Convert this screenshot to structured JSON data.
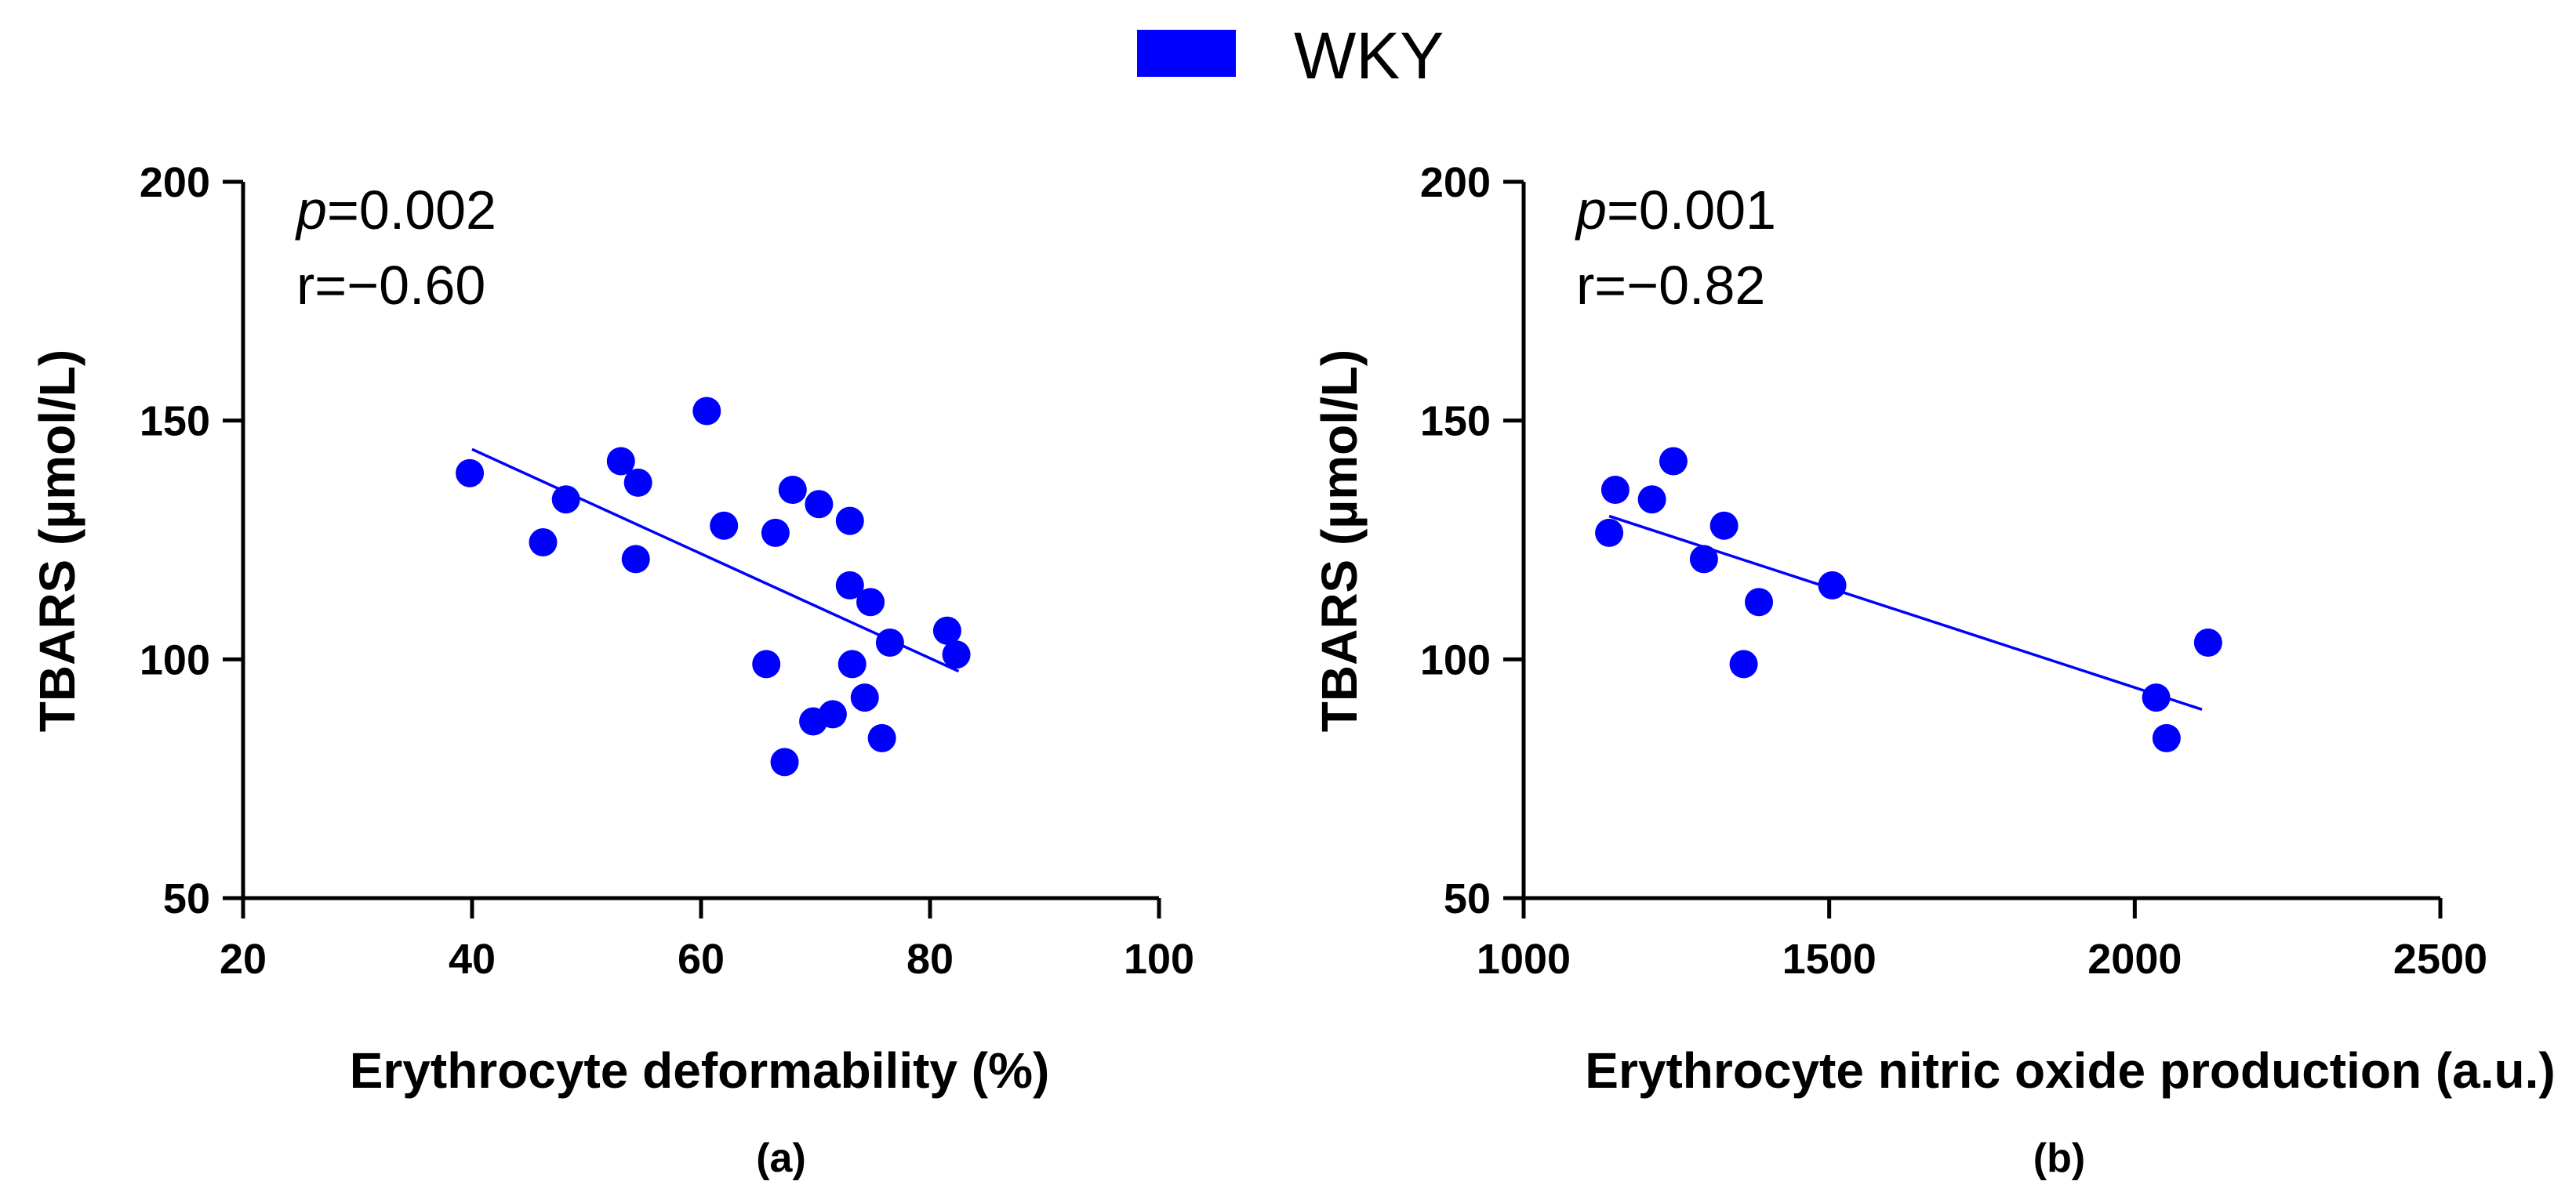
{
  "legend": {
    "label": "WKY",
    "color": "#0000ff"
  },
  "chart_data": [
    {
      "type": "scatter",
      "panel_label": "(a)",
      "xlabel": "Erythrocyte deformability (%)",
      "ylabel": "TBARS (µmol/L)",
      "xlim": [
        20,
        100
      ],
      "ylim": [
        50,
        200
      ],
      "xticks": [
        20,
        40,
        60,
        80,
        100
      ],
      "yticks": [
        50,
        100,
        150,
        200
      ],
      "p_prefix": "p",
      "p_value": "=0.002",
      "r_text": "r=−0.60",
      "series": [
        {
          "name": "WKY",
          "points": [
            [
              39.8,
              139
            ],
            [
              46.2,
              124.5
            ],
            [
              48.2,
              133.5
            ],
            [
              53,
              141.5
            ],
            [
              54.5,
              137
            ],
            [
              54.3,
              121
            ],
            [
              60.5,
              152
            ],
            [
              62,
              128
            ],
            [
              66.5,
              126.5
            ],
            [
              68,
              135.5
            ],
            [
              70.3,
              132.5
            ],
            [
              73,
              129
            ],
            [
              73,
              115.5
            ],
            [
              74.8,
              112
            ],
            [
              76.5,
              103.5
            ],
            [
              81.5,
              106
            ],
            [
              82.3,
              101
            ],
            [
              65.7,
              99
            ],
            [
              73.2,
              99
            ],
            [
              74.3,
              92
            ],
            [
              71.5,
              88.5
            ],
            [
              69.8,
              87
            ],
            [
              75.8,
              83.5
            ],
            [
              67.3,
              78.5
            ]
          ]
        }
      ],
      "fit_line": {
        "x": [
          40,
          82.5
        ],
        "y": [
          144,
          97.5
        ]
      }
    },
    {
      "type": "scatter",
      "panel_label": "(b)",
      "xlabel": "Erythrocyte nitric oxide production (a.u.)",
      "ylabel": "TBARS (µmol/L)",
      "xlim": [
        1000,
        2500
      ],
      "ylim": [
        50,
        200
      ],
      "xticks": [
        1000,
        1500,
        2000,
        2500
      ],
      "yticks": [
        50,
        100,
        150,
        200
      ],
      "p_prefix": "p",
      "p_value": "=0.001",
      "r_text": "r=−0.82",
      "series": [
        {
          "name": "WKY",
          "points": [
            [
              1140,
              126.5
            ],
            [
              1150,
              135.5
            ],
            [
              1210,
              133.5
            ],
            [
              1245,
              141.5
            ],
            [
              1295,
              121
            ],
            [
              1328,
              128
            ],
            [
              1360,
              99
            ],
            [
              1385,
              112
            ],
            [
              1505,
              115.5
            ],
            [
              2035,
              92
            ],
            [
              2052,
              83.5
            ],
            [
              2120,
              103.5
            ]
          ]
        }
      ],
      "fit_line": {
        "x": [
          1140,
          2110
        ],
        "y": [
          130,
          89.5
        ]
      }
    }
  ]
}
